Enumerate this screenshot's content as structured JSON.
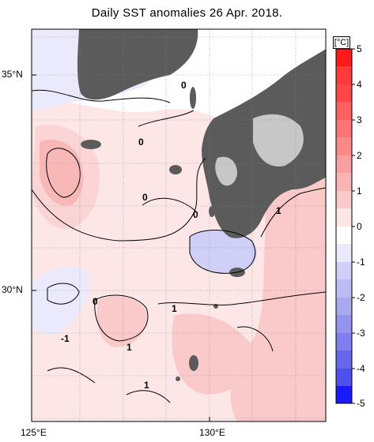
{
  "title": "Daily SST anomalies 26 Apr. 2018.",
  "lat_labels": [
    "35°N",
    "30°N"
  ],
  "lon_labels": [
    "125°E",
    "130°E"
  ],
  "colorbar": {
    "unit": "[°C]",
    "ticks": [
      "5",
      "4",
      "3",
      "2",
      "1",
      "0",
      "-1",
      "-2",
      "-3",
      "-4",
      "-5"
    ],
    "colors": {
      "pos5": "#ff1a1a",
      "pos4": "#ff4747",
      "pos3": "#ff7474",
      "pos2": "#f89f9f",
      "pos1": "#fac9c9",
      "pos0": "#fde6e6",
      "neg0": "#eaeafc",
      "neg1": "#cfcff8",
      "neg2": "#a9a9f2",
      "neg3": "#7f7fef",
      "neg4": "#4f4fee",
      "neg5": "#1a1aff"
    }
  },
  "contour_labels": [
    "0",
    "0",
    "0",
    "0",
    "0",
    "1",
    "1",
    "1",
    "-1",
    "1"
  ],
  "colors": {
    "land": "#5b5b5b",
    "missing": "#c7c7c7",
    "ocean_neutral": "#ffffff"
  }
}
